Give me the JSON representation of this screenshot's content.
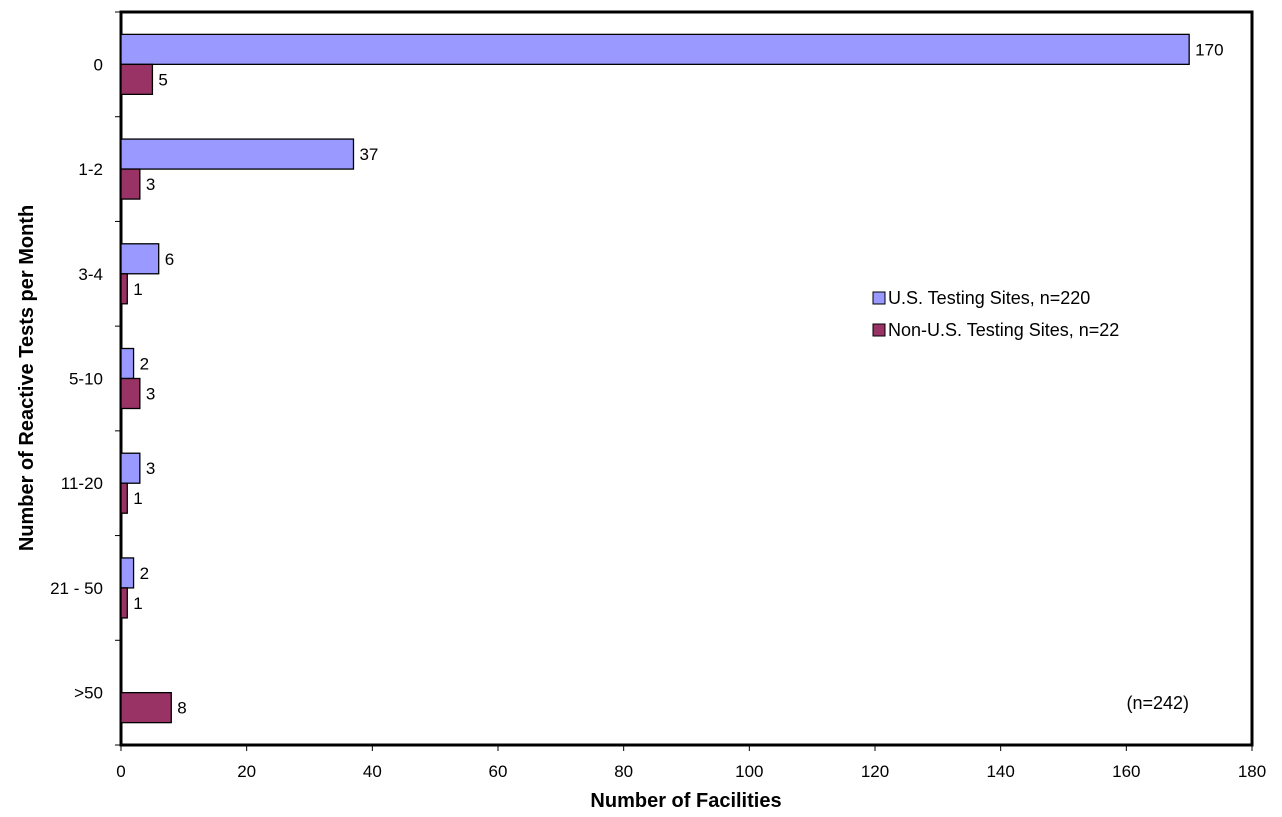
{
  "chart_data": {
    "type": "bar",
    "orientation": "horizontal",
    "categories": [
      "0",
      "1-2",
      "3-4",
      "5-10",
      "11-20",
      "21 - 50",
      ">50"
    ],
    "series": [
      {
        "name": "U.S. Testing Sites, n=220",
        "color": "#9999ff",
        "values": [
          170,
          37,
          6,
          2,
          3,
          2,
          null
        ]
      },
      {
        "name": "Non-U.S. Testing Sites, n=22",
        "color": "#993366",
        "values": [
          5,
          3,
          1,
          3,
          1,
          1,
          8
        ]
      }
    ],
    "title": "",
    "xlabel": "Number of Facilities",
    "ylabel": "Number of Reactive Tests per Month",
    "xlim": [
      0,
      180
    ],
    "xticks": [
      0,
      20,
      40,
      60,
      80,
      100,
      120,
      140,
      160,
      180
    ],
    "grid": false,
    "legend": "right",
    "annotation": "(n=242)"
  }
}
